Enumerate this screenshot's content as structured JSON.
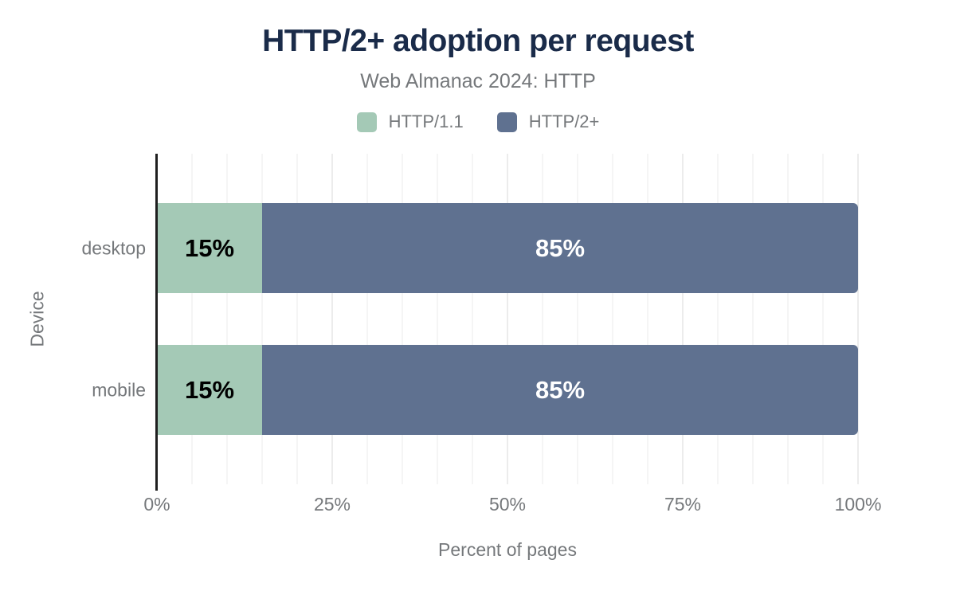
{
  "header": {
    "title": "HTTP/2+ adoption per request",
    "subtitle": "Web Almanac 2024: HTTP"
  },
  "colors": {
    "title_text": "#1a2b49",
    "muted_text": "#75787b",
    "axis_line": "#1f1f1f",
    "grid_minor": "#f5f5f5",
    "grid_major": "#ececec",
    "series_http11": "#a4c9b6",
    "series_http2plus": "#5f7190",
    "label_on_http11": "#000000",
    "label_on_http2plus": "#ffffff",
    "background": "#ffffff"
  },
  "legend": [
    {
      "label": "HTTP/1.1",
      "color": "#a4c9b6"
    },
    {
      "label": "HTTP/2+",
      "color": "#5f7190"
    }
  ],
  "chart_data": {
    "type": "bar",
    "orientation": "horizontal",
    "stacked": true,
    "title": "HTTP/2+ adoption per request",
    "subtitle": "Web Almanac 2024: HTTP",
    "categories": [
      "desktop",
      "mobile"
    ],
    "series": [
      {
        "name": "HTTP/1.1",
        "color": "#a4c9b6",
        "label_color": "#000000",
        "values": [
          15,
          15
        ]
      },
      {
        "name": "HTTP/2+",
        "color": "#5f7190",
        "label_color": "#ffffff",
        "values": [
          85,
          85
        ]
      }
    ],
    "value_labels": [
      {
        "category": "desktop",
        "labels": [
          "15%",
          "85%"
        ]
      },
      {
        "category": "mobile",
        "labels": [
          "15%",
          "85%"
        ]
      }
    ],
    "xlabel": "Percent of pages",
    "ylabel": "Device",
    "xlim": [
      0,
      100
    ],
    "x_ticks": [
      {
        "value": 0,
        "label": "0%"
      },
      {
        "value": 25,
        "label": "25%"
      },
      {
        "value": 50,
        "label": "50%"
      },
      {
        "value": 75,
        "label": "75%"
      },
      {
        "value": 100,
        "label": "100%"
      }
    ],
    "grid": {
      "minor_step": 5,
      "major_step": 25,
      "grid_on": true
    },
    "legend_position": "top",
    "value_suffix": "%"
  }
}
